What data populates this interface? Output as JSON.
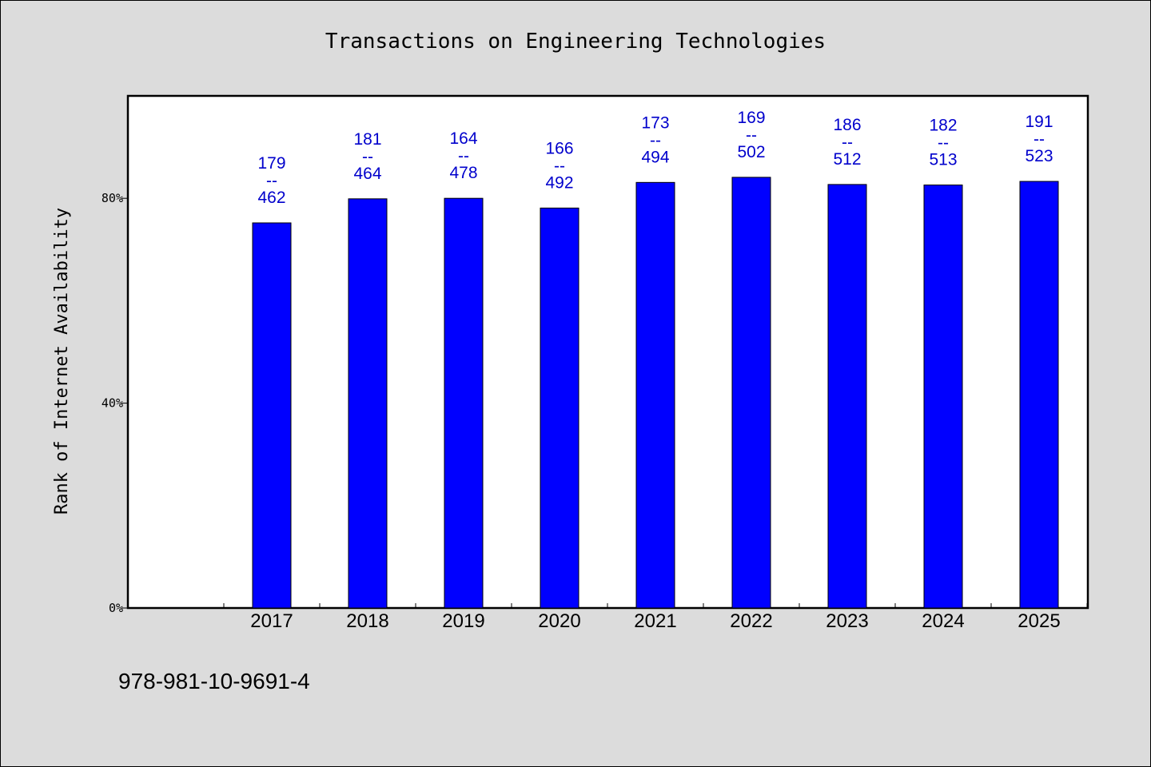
{
  "colors": {
    "background": "#dcdcdc",
    "plot_background": "#ffffff",
    "bar_fill": "#0000ff",
    "label_color": "#0000cc"
  },
  "footer": {
    "isbn": "978-981-10-9691-4"
  },
  "chart_data": {
    "type": "bar",
    "title": "Transactions on Engineering Technologies",
    "xlabel": "",
    "ylabel": "Rank of Internet Availability",
    "ylim": [
      0,
      100
    ],
    "yticks": [
      0,
      40,
      80
    ],
    "ytick_labels": [
      "0%",
      "40%",
      "80%"
    ],
    "categories": [
      "2017",
      "2018",
      "2019",
      "2020",
      "2021",
      "2022",
      "2023",
      "2024",
      "2025"
    ],
    "values": [
      75.2,
      79.9,
      80.0,
      78.1,
      83.1,
      84.1,
      82.7,
      82.6,
      83.3
    ],
    "bar_labels": [
      {
        "top": "179",
        "sep": "--",
        "bottom": "462"
      },
      {
        "top": "181",
        "sep": "--",
        "bottom": "464"
      },
      {
        "top": "164",
        "sep": "--",
        "bottom": "478"
      },
      {
        "top": "166",
        "sep": "--",
        "bottom": "492"
      },
      {
        "top": "173",
        "sep": "--",
        "bottom": "494"
      },
      {
        "top": "169",
        "sep": "--",
        "bottom": "502"
      },
      {
        "top": "186",
        "sep": "--",
        "bottom": "512"
      },
      {
        "top": "182",
        "sep": "--",
        "bottom": "513"
      },
      {
        "top": "191",
        "sep": "--",
        "bottom": "523"
      }
    ],
    "grid": false,
    "legend": "none"
  }
}
